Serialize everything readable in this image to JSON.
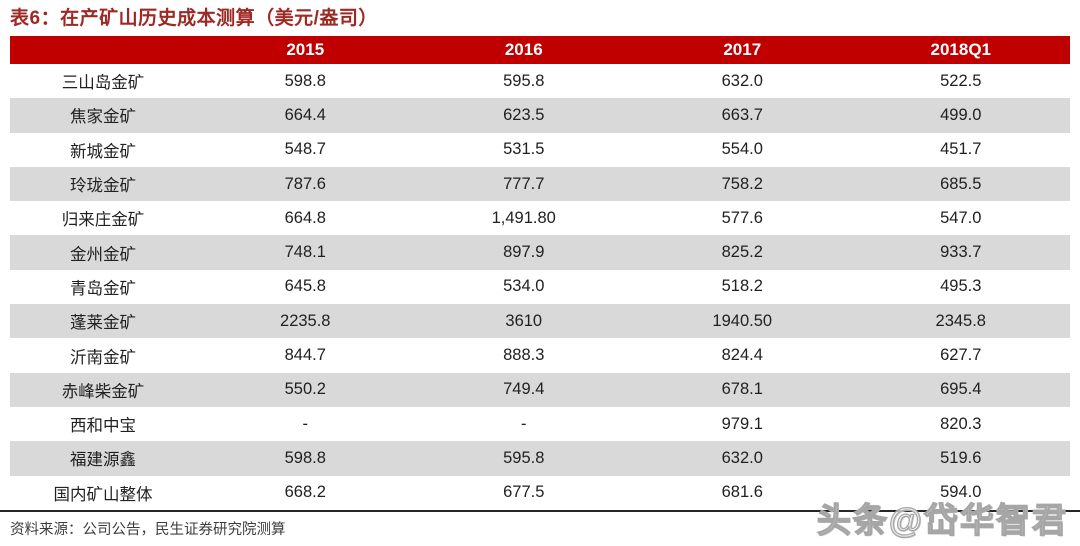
{
  "title": "表6：在产矿山历史成本测算（美元/盎司）",
  "source_note": "资料来源：公司公告，民生证券研究院测算",
  "watermark": {
    "text": "头条@岱华智君"
  },
  "colors": {
    "header_red": "#c00000",
    "title_red": "#9e2823",
    "row_alt_gray": "#d9d9d9",
    "bottom_rule": "#262626"
  },
  "chart_data": {
    "type": "table",
    "title": "表6：在产矿山历史成本测算（美元/盎司）",
    "columns": [
      "2015",
      "2016",
      "2017",
      "2018Q1"
    ],
    "rows": [
      {
        "name": "三山岛金矿",
        "values": [
          "598.8",
          "595.8",
          "632.0",
          "522.5"
        ]
      },
      {
        "name": "焦家金矿",
        "values": [
          "664.4",
          "623.5",
          "663.7",
          "499.0"
        ]
      },
      {
        "name": "新城金矿",
        "values": [
          "548.7",
          "531.5",
          "554.0",
          "451.7"
        ]
      },
      {
        "name": "玲珑金矿",
        "values": [
          "787.6",
          "777.7",
          "758.2",
          "685.5"
        ]
      },
      {
        "name": "归来庄金矿",
        "values": [
          "664.8",
          "1,491.80",
          "577.6",
          "547.0"
        ]
      },
      {
        "name": "金州金矿",
        "values": [
          "748.1",
          "897.9",
          "825.2",
          "933.7"
        ]
      },
      {
        "name": "青岛金矿",
        "values": [
          "645.8",
          "534.0",
          "518.2",
          "495.3"
        ]
      },
      {
        "name": "蓬莱金矿",
        "values": [
          "2235.8",
          "3610",
          "1940.50",
          "2345.8"
        ]
      },
      {
        "name": "沂南金矿",
        "values": [
          "844.7",
          "888.3",
          "824.4",
          "627.7"
        ]
      },
      {
        "name": "赤峰柴金矿",
        "values": [
          "550.2",
          "749.4",
          "678.1",
          "695.4"
        ]
      },
      {
        "name": "西和中宝",
        "values": [
          "-",
          "-",
          "979.1",
          "820.3"
        ]
      },
      {
        "name": "福建源鑫",
        "values": [
          "598.8",
          "595.8",
          "632.0",
          "519.6"
        ]
      },
      {
        "name": "国内矿山整体",
        "values": [
          "668.2",
          "677.5",
          "681.6",
          "594.0"
        ]
      }
    ]
  }
}
